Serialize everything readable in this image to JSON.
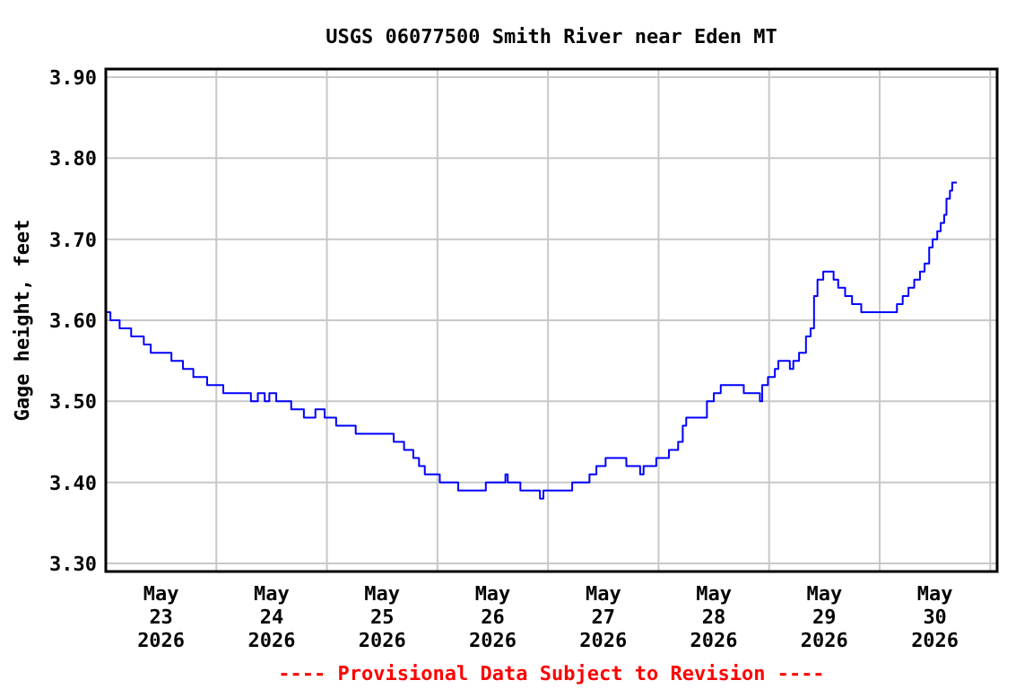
{
  "chart_data": {
    "type": "step",
    "title": "USGS 06077500 Smith River near Eden MT",
    "ylabel": "Gage height, feet",
    "annotations": [
      "---- Provisional Data Subject to Revision ----"
    ],
    "xlim": [
      "2026-05-23T00:00",
      "2026-05-31T01:30"
    ],
    "ylim": [
      3.29,
      3.91
    ],
    "xticks": [
      {
        "value": "2026-05-23T12:00",
        "label": "May\n23\n2026"
      },
      {
        "value": "2026-05-24T00:00",
        "label": null
      },
      {
        "value": "2026-05-24T12:00",
        "label": "May\n24\n2026"
      },
      {
        "value": "2026-05-25T00:00",
        "label": null
      },
      {
        "value": "2026-05-25T12:00",
        "label": "May\n25\n2026"
      },
      {
        "value": "2026-05-26T00:00",
        "label": null
      },
      {
        "value": "2026-05-26T12:00",
        "label": "May\n26\n2026"
      },
      {
        "value": "2026-05-27T00:00",
        "label": null
      },
      {
        "value": "2026-05-27T12:00",
        "label": "May\n27\n2026"
      },
      {
        "value": "2026-05-28T00:00",
        "label": null
      },
      {
        "value": "2026-05-28T12:00",
        "label": "May\n28\n2026"
      },
      {
        "value": "2026-05-29T00:00",
        "label": null
      },
      {
        "value": "2026-05-29T12:00",
        "label": "May\n29\n2026"
      },
      {
        "value": "2026-05-30T00:00",
        "label": null
      },
      {
        "value": "2026-05-30T12:00",
        "label": "May\n30\n2026"
      },
      {
        "value": "2026-05-31T00:00",
        "label": null
      }
    ],
    "yticks": [
      {
        "value": 3.3,
        "label": "3.30"
      },
      {
        "value": 3.4,
        "label": "3.40"
      },
      {
        "value": 3.5,
        "label": "3.50"
      },
      {
        "value": 3.6,
        "label": "3.60"
      },
      {
        "value": 3.7,
        "label": "3.70"
      },
      {
        "value": 3.8,
        "label": "3.80"
      },
      {
        "value": 3.9,
        "label": "3.90"
      }
    ],
    "grid": true,
    "marker": "none",
    "line_style": "solid",
    "x": [
      "2026-05-23T00:00",
      "2026-05-23T01:00",
      "2026-05-23T03:00",
      "2026-05-23T05:30",
      "2026-05-23T08:15",
      "2026-05-23T09:45",
      "2026-05-23T14:15",
      "2026-05-23T16:45",
      "2026-05-23T19:00",
      "2026-05-23T22:00",
      "2026-05-24T01:30",
      "2026-05-24T07:30",
      "2026-05-24T09:00",
      "2026-05-24T10:30",
      "2026-05-24T11:30",
      "2026-05-24T13:00",
      "2026-05-24T16:15",
      "2026-05-24T19:00",
      "2026-05-24T21:30",
      "2026-05-24T23:30",
      "2026-05-25T02:00",
      "2026-05-25T06:15",
      "2026-05-25T14:30",
      "2026-05-25T16:45",
      "2026-05-25T18:45",
      "2026-05-25T20:00",
      "2026-05-25T21:15",
      "2026-05-26T00:30",
      "2026-05-26T04:30",
      "2026-05-26T10:30",
      "2026-05-26T14:45",
      "2026-05-26T15:15",
      "2026-05-26T18:00",
      "2026-05-26T22:15",
      "2026-05-26T23:00",
      "2026-05-27T05:15",
      "2026-05-27T09:00",
      "2026-05-27T10:30",
      "2026-05-27T12:30",
      "2026-05-27T17:00",
      "2026-05-27T20:00",
      "2026-05-27T20:45",
      "2026-05-27T23:30",
      "2026-05-28T02:15",
      "2026-05-28T04:15",
      "2026-05-28T05:15",
      "2026-05-28T06:00",
      "2026-05-28T10:30",
      "2026-05-28T12:00",
      "2026-05-28T13:30",
      "2026-05-28T18:30",
      "2026-05-28T22:00",
      "2026-05-28T22:30",
      "2026-05-28T23:45",
      "2026-05-29T01:15",
      "2026-05-29T02:00",
      "2026-05-29T04:30",
      "2026-05-29T05:15",
      "2026-05-29T06:30",
      "2026-05-29T08:00",
      "2026-05-29T09:00",
      "2026-05-29T09:45",
      "2026-05-29T10:30",
      "2026-05-29T11:45",
      "2026-05-29T14:00",
      "2026-05-29T15:00",
      "2026-05-29T16:30",
      "2026-05-29T18:00",
      "2026-05-29T20:00",
      "2026-05-30T03:45",
      "2026-05-30T05:00",
      "2026-05-30T06:15",
      "2026-05-30T07:30",
      "2026-05-30T08:45",
      "2026-05-30T09:45",
      "2026-05-30T10:45",
      "2026-05-30T11:30",
      "2026-05-30T12:30",
      "2026-05-30T13:15",
      "2026-05-30T14:00",
      "2026-05-30T14:30",
      "2026-05-30T15:15",
      "2026-05-30T15:45",
      "2026-05-30T16:45"
    ],
    "series": [
      {
        "color": "#0000ff",
        "values": [
          3.61,
          3.6,
          3.59,
          3.58,
          3.57,
          3.56,
          3.55,
          3.54,
          3.53,
          3.52,
          3.51,
          3.5,
          3.51,
          3.5,
          3.51,
          3.5,
          3.49,
          3.48,
          3.49,
          3.48,
          3.47,
          3.46,
          3.45,
          3.44,
          3.43,
          3.42,
          3.41,
          3.4,
          3.39,
          3.4,
          3.41,
          3.4,
          3.39,
          3.38,
          3.39,
          3.4,
          3.41,
          3.42,
          3.43,
          3.42,
          3.41,
          3.42,
          3.43,
          3.44,
          3.45,
          3.47,
          3.48,
          3.5,
          3.51,
          3.52,
          3.51,
          3.5,
          3.52,
          3.53,
          3.54,
          3.55,
          3.54,
          3.55,
          3.56,
          3.58,
          3.59,
          3.63,
          3.65,
          3.66,
          3.65,
          3.64,
          3.63,
          3.62,
          3.61,
          3.62,
          3.63,
          3.64,
          3.65,
          3.66,
          3.67,
          3.69,
          3.7,
          3.71,
          3.72,
          3.73,
          3.75,
          3.76,
          3.77,
          3.77
        ]
      }
    ]
  }
}
